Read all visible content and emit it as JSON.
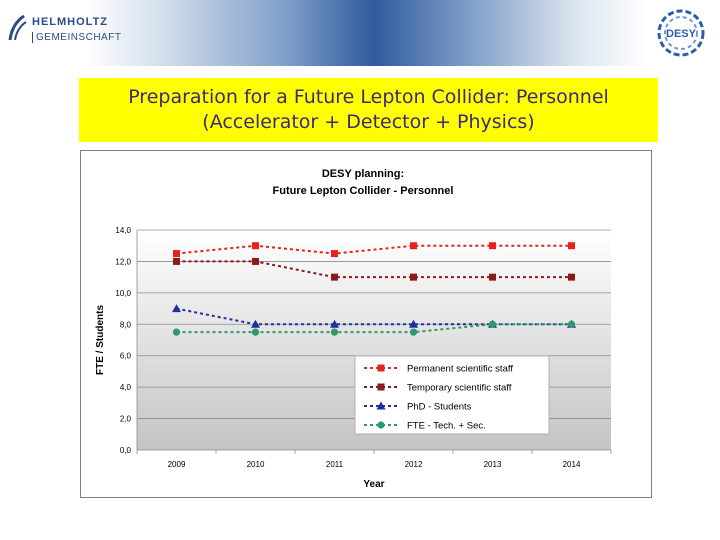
{
  "header": {
    "logo_line1": "HELMHOLTZ",
    "logo_line2": "GEMEINSCHAFT",
    "desy_logo_text": "DESY"
  },
  "slide": {
    "title_line1": "Preparation for a Future Lepton Collider: Personnel",
    "title_line2": "(Accelerator + Detector + Physics)"
  },
  "colors": {
    "title_box": "#ffff00",
    "title_text": "#3a2a78",
    "series_permanent": "#e8231d",
    "series_temporary": "#8b1a1a",
    "series_phd": "#1f2f9c",
    "series_fte": "#2e9a6a"
  },
  "chart_data": {
    "type": "line",
    "title": "DESY planning:",
    "subtitle": "Future Lepton Collider - Personnel",
    "xlabel": "Year",
    "ylabel": "FTE / Students",
    "categories": [
      "2009",
      "2010",
      "2011",
      "2012",
      "2013",
      "2014"
    ],
    "ylim": [
      0,
      14
    ],
    "yticks": [
      "0,0",
      "2,0",
      "4,0",
      "6,0",
      "8,0",
      "10,0",
      "12,0",
      "14,0"
    ],
    "grid": true,
    "legend_position": "bottom-right",
    "series": [
      {
        "name": "Permanent scientific staff",
        "values": [
          12.5,
          13.0,
          12.5,
          13.0,
          13.0,
          13.0
        ],
        "color": "#e8231d",
        "marker": "square"
      },
      {
        "name": "Temporary scientific staff",
        "values": [
          12.0,
          12.0,
          11.0,
          11.0,
          11.0,
          11.0
        ],
        "color": "#8b1a1a",
        "marker": "square"
      },
      {
        "name": "PhD - Students",
        "values": [
          9.0,
          8.0,
          8.0,
          8.0,
          8.0,
          8.0
        ],
        "color": "#1f2f9c",
        "marker": "triangle"
      },
      {
        "name": "FTE - Tech. + Sec.",
        "values": [
          7.5,
          7.5,
          7.5,
          7.5,
          8.0,
          8.0
        ],
        "color": "#2e9a6a",
        "marker": "circle"
      }
    ]
  }
}
